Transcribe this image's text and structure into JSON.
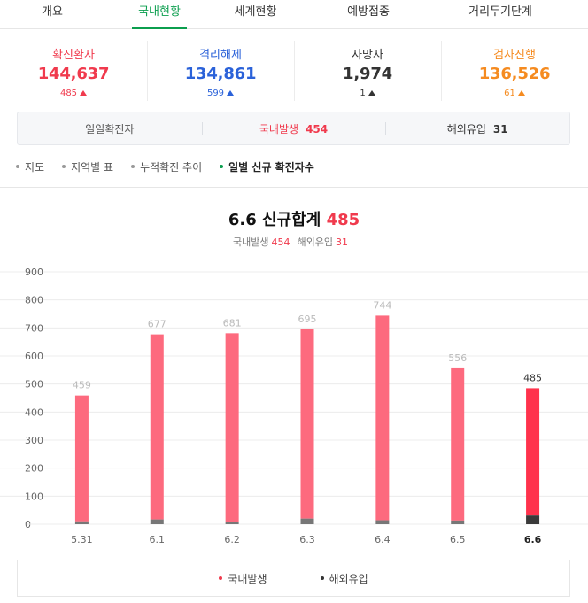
{
  "tabs": [
    {
      "label": "개요",
      "active": false
    },
    {
      "label": "국내현황",
      "active": true
    },
    {
      "label": "세계현황",
      "active": false
    },
    {
      "label": "예방접종",
      "active": false
    },
    {
      "label": "거리두기단계",
      "active": false
    }
  ],
  "stats": {
    "confirmed": {
      "label": "확진환자",
      "value": "144,637",
      "delta": "485"
    },
    "released": {
      "label": "격리해제",
      "value": "134,861",
      "delta": "599"
    },
    "deaths": {
      "label": "사망자",
      "value": "1,974",
      "delta": "1"
    },
    "testing": {
      "label": "검사진행",
      "value": "136,526",
      "delta": "61"
    }
  },
  "daily": {
    "label": "일일확진자",
    "domestic_label": "국내발생",
    "domestic_value": "454",
    "overseas_label": "해외유입",
    "overseas_value": "31"
  },
  "subnav": [
    {
      "label": "지도",
      "active": false
    },
    {
      "label": "지역별 표",
      "active": false
    },
    {
      "label": "누적확진 추이",
      "active": false
    },
    {
      "label": "일별 신규 확진자수",
      "active": true
    }
  ],
  "summary": {
    "date": "6.6",
    "title_label": "신규합계",
    "total": "485",
    "domestic_label": "국내발생",
    "domestic_value": "454",
    "overseas_label": "해외유입",
    "overseas_value": "31"
  },
  "chart_data": {
    "type": "bar",
    "stacked": true,
    "categories": [
      "5.31",
      "6.1",
      "6.2",
      "6.3",
      "6.4",
      "6.5",
      "6.6"
    ],
    "series": [
      {
        "name": "국내발생",
        "values": [
          449,
          660,
          673,
          675,
          730,
          543,
          454
        ]
      },
      {
        "name": "해외유입",
        "values": [
          10,
          17,
          8,
          20,
          14,
          13,
          31
        ]
      }
    ],
    "totals": [
      459,
      677,
      681,
      695,
      744,
      556,
      485
    ],
    "yticks": [
      0,
      100,
      200,
      300,
      400,
      500,
      600,
      700,
      800,
      900
    ],
    "ylim": [
      0,
      900
    ],
    "grid": true,
    "highlight_index": 6,
    "legend_position": "bottom",
    "colors": {
      "domestic": "#fd6a7e",
      "domestic_highlight": "#ff324c",
      "overseas": "#777777",
      "overseas_highlight": "#3a3a3a",
      "label": "#bbbbbb",
      "label_highlight": "#333333"
    }
  },
  "legend": [
    {
      "label": "국내발생",
      "color": "#f03a4d"
    },
    {
      "label": "해외유입",
      "color": "#333333"
    }
  ]
}
